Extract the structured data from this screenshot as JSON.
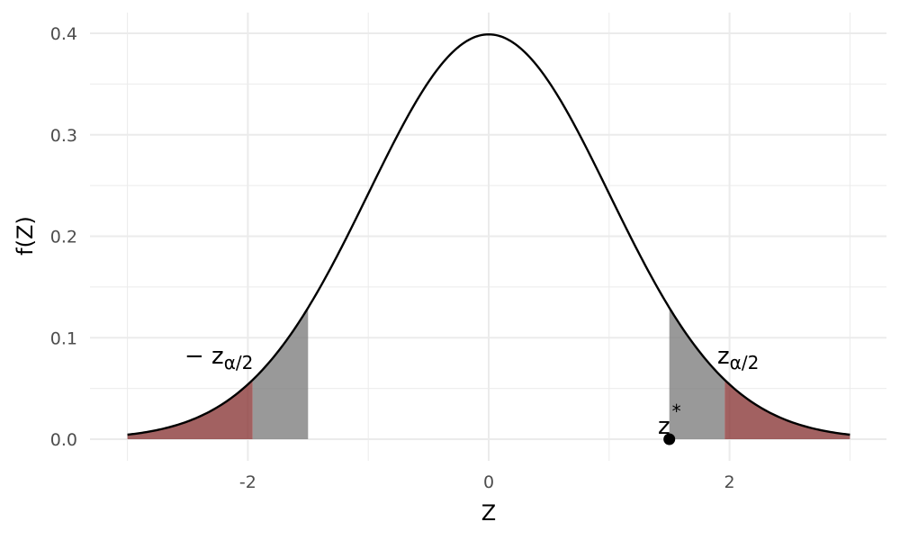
{
  "chart_data": {
    "type": "area",
    "distribution": "standard normal density",
    "xlabel": "Z",
    "ylabel": "f(Z)",
    "xlim": [
      -3,
      3
    ],
    "ylim": [
      0,
      0.4
    ],
    "x_ticks": [
      -2,
      0,
      2
    ],
    "x_tick_labels": [
      "-2",
      "0",
      "2"
    ],
    "y_ticks": [
      0,
      0.1,
      0.2,
      0.3,
      0.4
    ],
    "y_tick_labels": [
      "0.0",
      "0.1",
      "0.2",
      "0.3",
      "0.4"
    ],
    "grid": true,
    "legend": "none",
    "critical_value": 1.96,
    "z_star": 1.5,
    "shaded_regions": [
      {
        "from": -3,
        "to": -1.96,
        "color": "#8b3a3a"
      },
      {
        "from": -1.96,
        "to": -1.5,
        "color": "#808080"
      },
      {
        "from": 1.5,
        "to": 1.96,
        "color": "#808080"
      },
      {
        "from": 1.96,
        "to": 3,
        "color": "#8b3a3a"
      }
    ],
    "annotations": {
      "neg_crit": {
        "main": "− z",
        "sub": "α/2"
      },
      "pos_crit": {
        "main": "z",
        "sub": "α/2"
      },
      "zstar": {
        "main": "z",
        "sup": "*"
      }
    },
    "curve_color": "#000000"
  }
}
